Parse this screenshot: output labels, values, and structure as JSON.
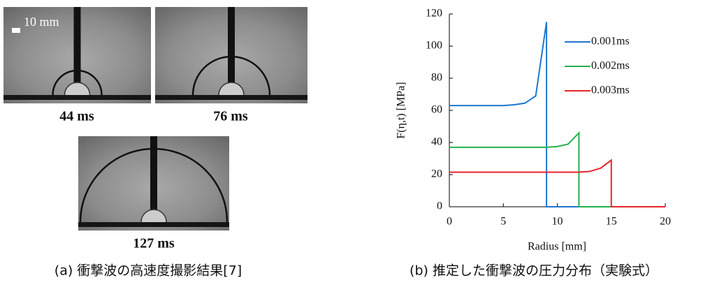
{
  "figure_a": {
    "scale_label": "10 mm",
    "frames": [
      "44 ms",
      "76 ms",
      "127 ms"
    ],
    "caption": "(a) 衝撃波の高速度撮影結果[7]"
  },
  "figure_b": {
    "caption": "(b) 推定した衝撃波の圧力分布（実験式）"
  },
  "chart_data": {
    "type": "line",
    "x_label": "Radius [mm]",
    "y_label": "F(η,t) [MPa]",
    "xlim": [
      0,
      20
    ],
    "ylim": [
      0,
      120
    ],
    "xticks": [
      0,
      5,
      10,
      15,
      20
    ],
    "yticks": [
      0,
      20,
      40,
      60,
      80,
      100,
      120
    ],
    "grid": false,
    "legend": "upper-right",
    "series": [
      {
        "name": "0.001ms",
        "color": "#1f77d0",
        "x": [
          0,
          1,
          2,
          3,
          4,
          5,
          6,
          7,
          8,
          9,
          9,
          10,
          11,
          12,
          13,
          14,
          15,
          16,
          17,
          18,
          19,
          20
        ],
        "values": [
          63,
          63,
          63,
          63,
          63,
          63,
          63.5,
          64.5,
          69,
          115,
          0,
          0,
          0,
          0,
          0,
          0,
          0,
          0,
          0,
          0,
          0,
          0
        ]
      },
      {
        "name": "0.002ms",
        "color": "#22b24c",
        "x": [
          0,
          1,
          2,
          3,
          4,
          5,
          6,
          7,
          8,
          9,
          10,
          11,
          12,
          12,
          13,
          14,
          15,
          16,
          17,
          18,
          19,
          20
        ],
        "values": [
          37,
          37,
          37,
          37,
          37,
          37,
          37,
          37,
          37,
          37,
          37.5,
          39,
          46,
          0,
          0,
          0,
          0,
          0,
          0,
          0,
          0,
          0
        ]
      },
      {
        "name": "0.003ms",
        "color": "#e8252a",
        "x": [
          0,
          1,
          2,
          3,
          4,
          5,
          6,
          7,
          8,
          9,
          10,
          11,
          12,
          13,
          14,
          15,
          15,
          16,
          17,
          18,
          19,
          20
        ],
        "values": [
          21.5,
          21.5,
          21.5,
          21.5,
          21.5,
          21.5,
          21.5,
          21.5,
          21.5,
          21.5,
          21.5,
          21.5,
          21.5,
          22,
          24,
          29,
          0,
          0,
          0,
          0,
          0,
          0
        ]
      }
    ]
  }
}
